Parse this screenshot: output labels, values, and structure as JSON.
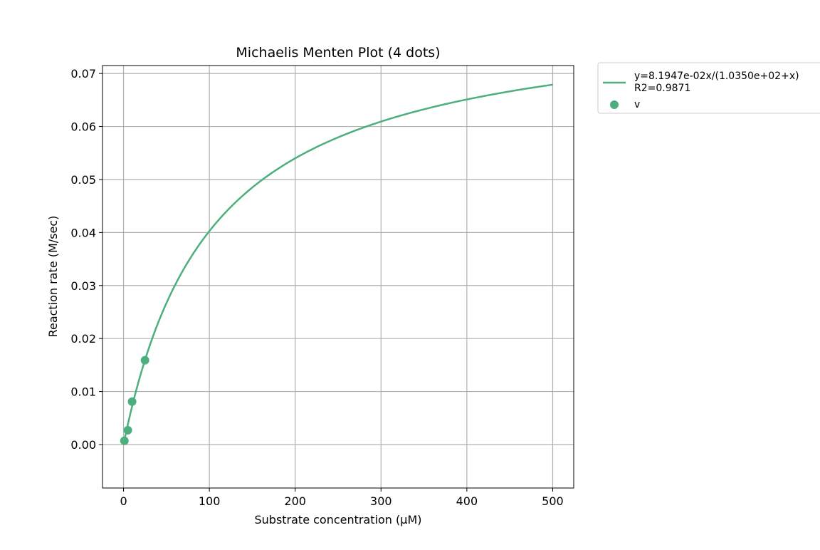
{
  "chart_data": {
    "type": "scatter",
    "title": "Michaelis Menten Plot (4 dots)",
    "xlabel": "Substrate concentration (μM)",
    "ylabel": "Reaction rate (M/sec)",
    "xlim": [
      -24.5,
      524.5
    ],
    "ylim": [
      -0.0082,
      0.0715
    ],
    "xticks": [
      0,
      100,
      200,
      300,
      400,
      500
    ],
    "yticks": [
      0.0,
      0.01,
      0.02,
      0.03,
      0.04,
      0.05,
      0.06,
      0.07
    ],
    "xtick_labels": [
      "0",
      "100",
      "200",
      "300",
      "400",
      "500"
    ],
    "ytick_labels": [
      "0.00",
      "0.01",
      "0.02",
      "0.03",
      "0.04",
      "0.05",
      "0.06",
      "0.07"
    ],
    "grid": true,
    "legend_placement": "outside-top-right",
    "color": "#4caf7d",
    "series": [
      {
        "name": "y=8.1947e-02x/(1.0350e+02+x)",
        "name_line2": "R2=0.9871",
        "kind": "line",
        "model": "michaelis-menten",
        "vmax": 0.081947,
        "km": 103.5,
        "x_range": [
          0,
          500
        ]
      },
      {
        "name": "v",
        "kind": "scatter",
        "x": [
          1,
          5,
          10,
          25
        ],
        "y": [
          0.0007,
          0.0027,
          0.0081,
          0.0159
        ]
      }
    ]
  }
}
